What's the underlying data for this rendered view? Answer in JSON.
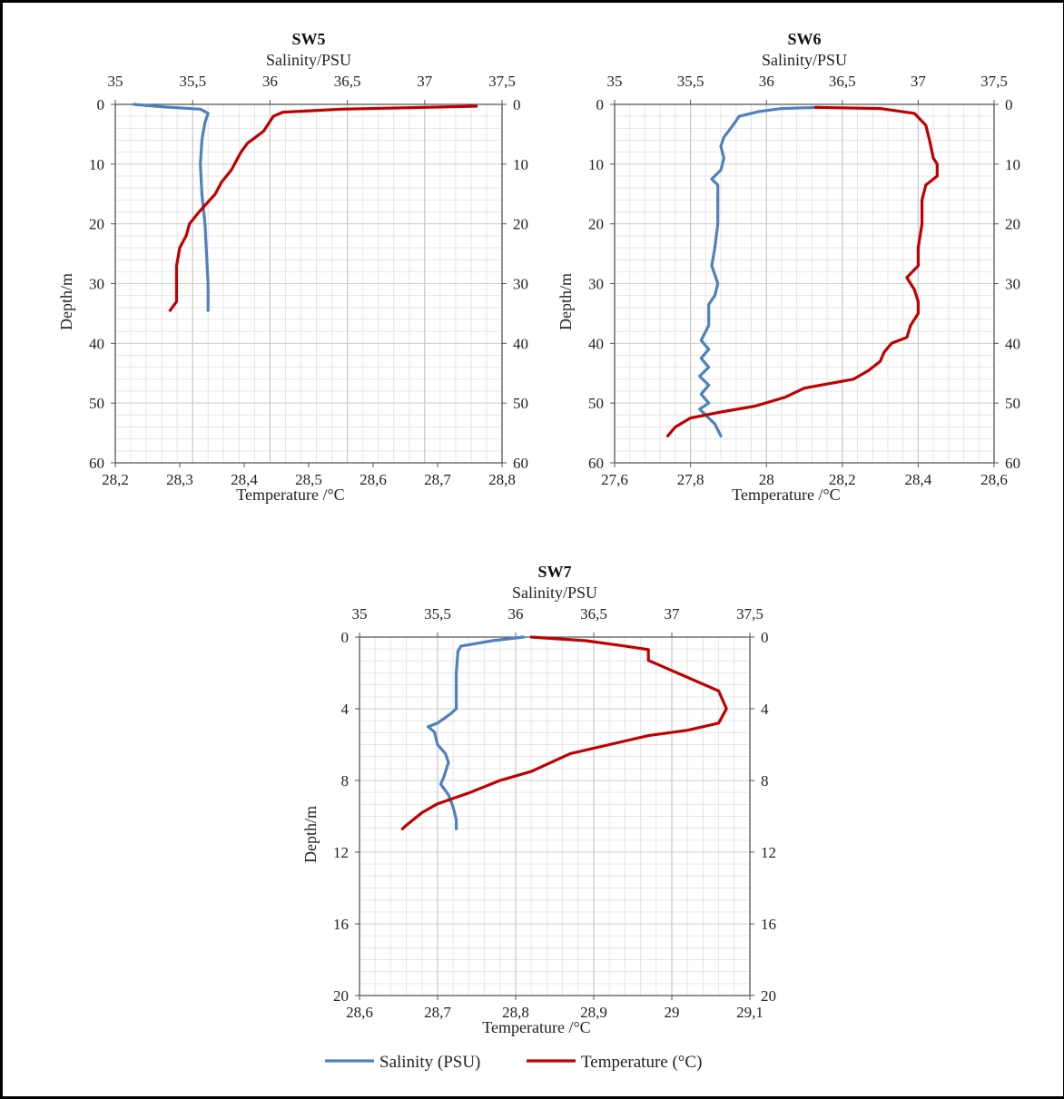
{
  "chart_data": [
    {
      "type": "line",
      "title": "SW5",
      "top_axis_label": "Salinity/PSU",
      "bottom_axis_label": "Temperature /°C",
      "ylabel": "Depth/m",
      "salinity_range": [
        35,
        37.5
      ],
      "salinity_ticks": [
        "35",
        "35,5",
        "36",
        "36,5",
        "37",
        "37,5"
      ],
      "temperature_range": [
        28.2,
        28.8
      ],
      "temperature_ticks": [
        "28,2",
        "28,3",
        "28,4",
        "28,5",
        "28,6",
        "28,7",
        "28,8"
      ],
      "depth_range": [
        0,
        60
      ],
      "depth_ticks": [
        "0",
        "10",
        "20",
        "30",
        "40",
        "50",
        "60"
      ],
      "grid": true,
      "series": [
        {
          "name": "Salinity (PSU)",
          "axis": "salinity",
          "color": "#4f81bd",
          "points": [
            [
              35.12,
              0
            ],
            [
              35.3,
              0.4
            ],
            [
              35.55,
              0.8
            ],
            [
              35.6,
              1.5
            ],
            [
              35.58,
              3
            ],
            [
              35.56,
              6
            ],
            [
              35.55,
              10
            ],
            [
              35.56,
              15
            ],
            [
              35.58,
              20
            ],
            [
              35.59,
              25
            ],
            [
              35.6,
              30
            ],
            [
              35.6,
              34.5
            ]
          ]
        },
        {
          "name": "Temperature (°C)",
          "axis": "temperature",
          "color": "#c00000",
          "points": [
            [
              28.76,
              0.3
            ],
            [
              28.55,
              0.8
            ],
            [
              28.46,
              1.3
            ],
            [
              28.445,
              2
            ],
            [
              28.43,
              4.5
            ],
            [
              28.405,
              6.5
            ],
            [
              28.395,
              8
            ],
            [
              28.38,
              11
            ],
            [
              28.365,
              13
            ],
            [
              28.355,
              15
            ],
            [
              28.33,
              18
            ],
            [
              28.315,
              20
            ],
            [
              28.31,
              22
            ],
            [
              28.3,
              24
            ],
            [
              28.295,
              27
            ],
            [
              28.295,
              33
            ],
            [
              28.285,
              34.5
            ]
          ]
        }
      ]
    },
    {
      "type": "line",
      "title": "SW6",
      "top_axis_label": "Salinity/PSU",
      "bottom_axis_label": "Temperature /°C",
      "ylabel": "Depth/m",
      "salinity_range": [
        35,
        37.5
      ],
      "salinity_ticks": [
        "35",
        "35,5",
        "36",
        "36,5",
        "37",
        "37,5"
      ],
      "temperature_range": [
        27.6,
        28.6
      ],
      "temperature_ticks": [
        "27,6",
        "27,8",
        "28",
        "28,2",
        "28,4",
        "28,6"
      ],
      "depth_range": [
        0,
        60
      ],
      "depth_ticks": [
        "0",
        "10",
        "20",
        "30",
        "40",
        "50",
        "60"
      ],
      "grid": true,
      "series": [
        {
          "name": "Salinity (PSU)",
          "axis": "salinity",
          "color": "#4f81bd",
          "points": [
            [
              36.35,
              0.5
            ],
            [
              36.1,
              0.7
            ],
            [
              35.95,
              1.2
            ],
            [
              35.82,
              2
            ],
            [
              35.78,
              3.5
            ],
            [
              35.72,
              5.5
            ],
            [
              35.7,
              7
            ],
            [
              35.72,
              9
            ],
            [
              35.7,
              11
            ],
            [
              35.64,
              12.5
            ],
            [
              35.68,
              13.5
            ],
            [
              35.68,
              20
            ],
            [
              35.66,
              24
            ],
            [
              35.64,
              27
            ],
            [
              35.68,
              30
            ],
            [
              35.66,
              32
            ],
            [
              35.62,
              33.5
            ],
            [
              35.62,
              37
            ],
            [
              35.57,
              39.5
            ],
            [
              35.62,
              41
            ],
            [
              35.57,
              42.5
            ],
            [
              35.62,
              44
            ],
            [
              35.56,
              45.5
            ],
            [
              35.62,
              47
            ],
            [
              35.57,
              48.5
            ],
            [
              35.62,
              50
            ],
            [
              35.56,
              51
            ],
            [
              35.6,
              52
            ],
            [
              35.66,
              53.5
            ],
            [
              35.7,
              55.5
            ]
          ]
        },
        {
          "name": "Temperature (°C)",
          "axis": "temperature",
          "color": "#c00000",
          "points": [
            [
              28.13,
              0.5
            ],
            [
              28.3,
              0.7
            ],
            [
              28.39,
              1.5
            ],
            [
              28.42,
              3.5
            ],
            [
              28.43,
              6
            ],
            [
              28.44,
              9
            ],
            [
              28.45,
              10
            ],
            [
              28.45,
              12
            ],
            [
              28.42,
              13.5
            ],
            [
              28.41,
              16
            ],
            [
              28.41,
              20
            ],
            [
              28.4,
              24
            ],
            [
              28.4,
              27
            ],
            [
              28.37,
              29
            ],
            [
              28.39,
              31
            ],
            [
              28.4,
              33
            ],
            [
              28.4,
              35
            ],
            [
              28.38,
              37
            ],
            [
              28.37,
              39
            ],
            [
              28.33,
              40
            ],
            [
              28.31,
              41.5
            ],
            [
              28.3,
              43
            ],
            [
              28.27,
              44.5
            ],
            [
              28.23,
              46
            ],
            [
              28.1,
              47.5
            ],
            [
              28.05,
              49
            ],
            [
              27.97,
              50.5
            ],
            [
              27.88,
              51.5
            ],
            [
              27.8,
              52.5
            ],
            [
              27.76,
              54
            ],
            [
              27.74,
              55.5
            ]
          ]
        }
      ]
    },
    {
      "type": "line",
      "title": "SW7",
      "top_axis_label": "Salinity/PSU",
      "bottom_axis_label": "Temperature /°C",
      "ylabel": "Depth/m",
      "salinity_range": [
        35,
        37.5
      ],
      "salinity_ticks": [
        "35",
        "35,5",
        "36",
        "36,5",
        "37",
        "37,5"
      ],
      "temperature_range": [
        28.6,
        29.1
      ],
      "temperature_ticks": [
        "28,6",
        "28,7",
        "28,8",
        "28,9",
        "29",
        "29,1"
      ],
      "depth_range": [
        0,
        20
      ],
      "depth_ticks": [
        "0",
        "4",
        "8",
        "12",
        "16",
        "20"
      ],
      "grid": true,
      "series": [
        {
          "name": "Salinity (PSU)",
          "axis": "salinity",
          "color": "#4f81bd",
          "points": [
            [
              36.05,
              0
            ],
            [
              35.85,
              0.2
            ],
            [
              35.72,
              0.4
            ],
            [
              35.65,
              0.5
            ],
            [
              35.63,
              0.8
            ],
            [
              35.62,
              2
            ],
            [
              35.62,
              4
            ],
            [
              35.58,
              4.3
            ],
            [
              35.5,
              4.8
            ],
            [
              35.44,
              5
            ],
            [
              35.48,
              5.3
            ],
            [
              35.5,
              6
            ],
            [
              35.55,
              6.5
            ],
            [
              35.57,
              7
            ],
            [
              35.54,
              7.8
            ],
            [
              35.52,
              8.2
            ],
            [
              35.57,
              8.8
            ],
            [
              35.6,
              9.5
            ],
            [
              35.62,
              10.2
            ],
            [
              35.62,
              10.7
            ]
          ]
        },
        {
          "name": "Temperature (°C)",
          "axis": "temperature",
          "color": "#c00000",
          "points": [
            [
              28.82,
              0
            ],
            [
              28.89,
              0.2
            ],
            [
              28.94,
              0.5
            ],
            [
              28.97,
              0.7
            ],
            [
              28.97,
              1.3
            ],
            [
              29.06,
              3
            ],
            [
              29.07,
              4
            ],
            [
              29.06,
              4.8
            ],
            [
              29.02,
              5.2
            ],
            [
              28.97,
              5.5
            ],
            [
              28.92,
              6
            ],
            [
              28.87,
              6.5
            ],
            [
              28.82,
              7.5
            ],
            [
              28.78,
              8
            ],
            [
              28.74,
              8.7
            ],
            [
              28.7,
              9.3
            ],
            [
              28.68,
              9.8
            ],
            [
              28.66,
              10.5
            ],
            [
              28.655,
              10.7
            ]
          ]
        }
      ]
    }
  ],
  "legend": {
    "salinity_label": "Salinity (PSU)",
    "temperature_label": "Temperature (°C)",
    "salinity_color": "#4f81bd",
    "temperature_color": "#c00000"
  }
}
